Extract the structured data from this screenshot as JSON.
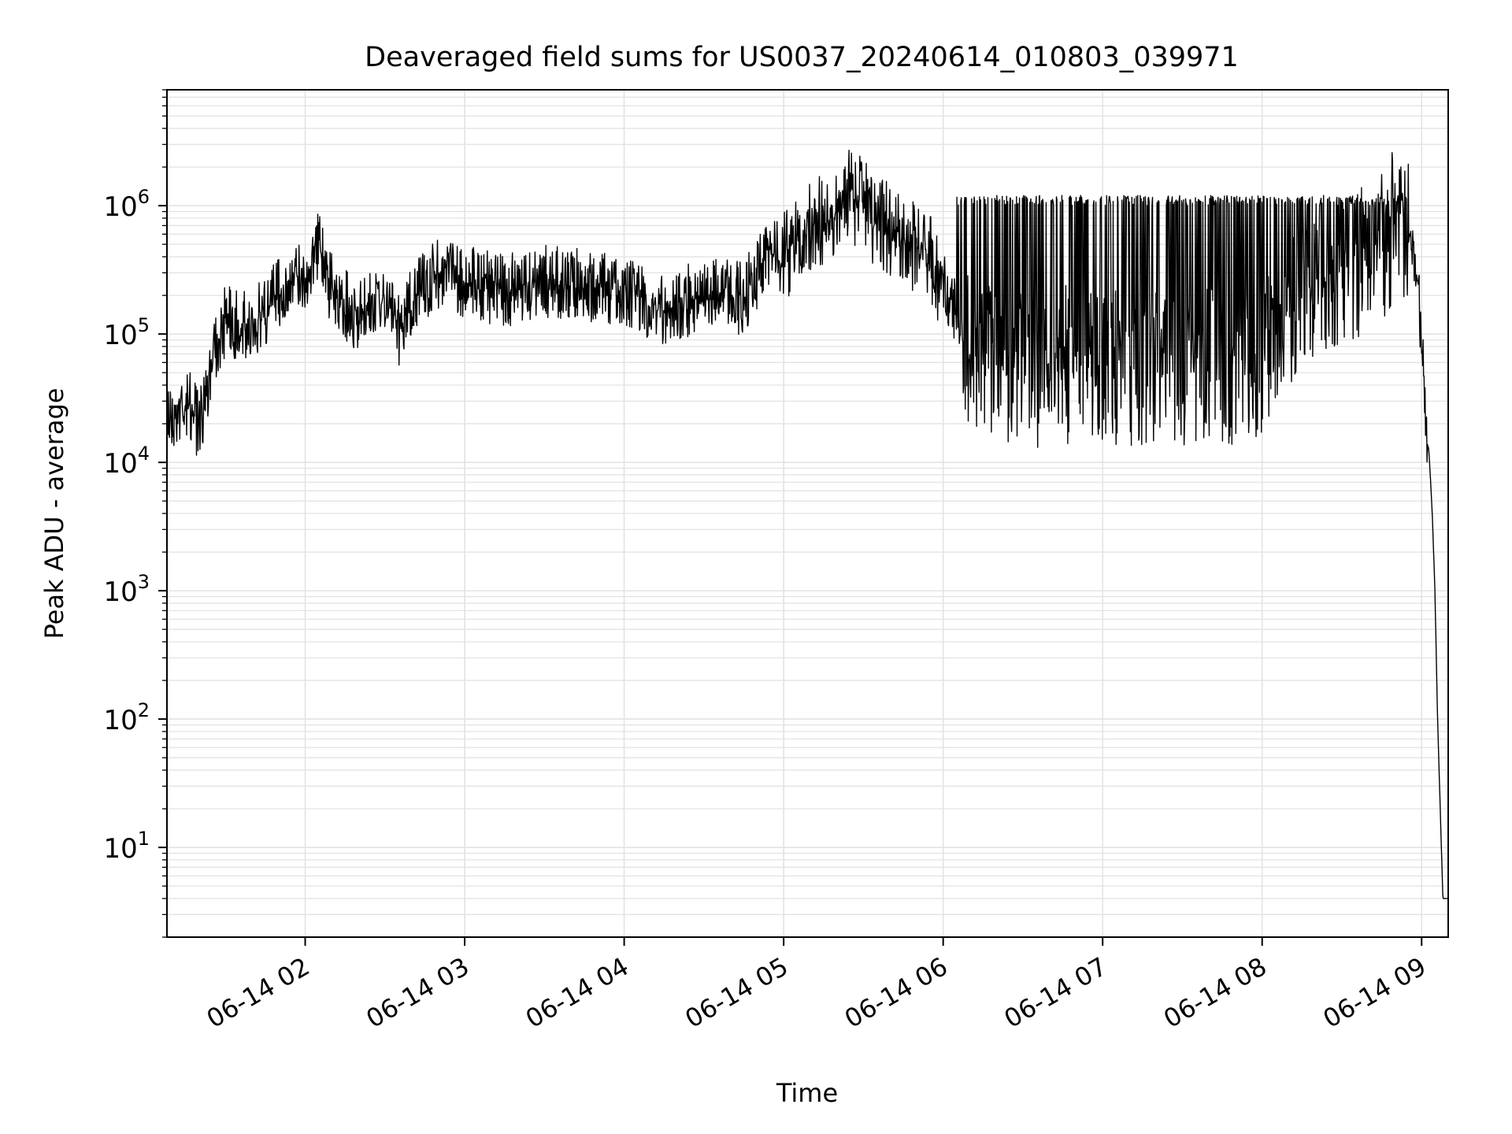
{
  "chart_data": {
    "type": "line",
    "title": "Deaveraged field sums for US0037_20240614_010803_039971",
    "xlabel": "Time",
    "ylabel": "Peak ADU - average",
    "yscale": "log",
    "ylim": [
      2,
      8000000
    ],
    "xlim": [
      "06-14 01:08",
      "06-14 09:10"
    ],
    "grid": true,
    "x_ticks": [
      "06-14 02",
      "06-14 03",
      "06-14 04",
      "06-14 05",
      "06-14 06",
      "06-14 07",
      "06-14 08",
      "06-14 09"
    ],
    "y_ticks": [
      {
        "value": 10,
        "base": "10",
        "exp": "1"
      },
      {
        "value": 100,
        "base": "10",
        "exp": "2"
      },
      {
        "value": 1000,
        "base": "10",
        "exp": "3"
      },
      {
        "value": 10000,
        "base": "10",
        "exp": "4"
      },
      {
        "value": 100000,
        "base": "10",
        "exp": "5"
      },
      {
        "value": 1000000,
        "base": "10",
        "exp": "6"
      }
    ],
    "series": [
      {
        "color": "#000000",
        "x": [
          "06-14 01:08",
          "06-14 01:12",
          "06-14 01:14",
          "06-14 01:18",
          "06-14 01:20",
          "06-14 01:25",
          "06-14 01:30",
          "06-14 01:40",
          "06-14 01:50",
          "06-14 02:00",
          "06-14 02:05",
          "06-14 02:10",
          "06-14 02:20",
          "06-14 02:30",
          "06-14 02:35",
          "06-14 02:40",
          "06-14 02:50",
          "06-14 03:00",
          "06-14 03:15",
          "06-14 03:30",
          "06-14 03:45",
          "06-14 04:00",
          "06-14 04:15",
          "06-14 04:30",
          "06-14 04:45",
          "06-14 04:55",
          "06-14 05:00",
          "06-14 05:10",
          "06-14 05:20",
          "06-14 05:25",
          "06-14 05:35",
          "06-14 05:45",
          "06-14 05:55",
          "06-14 06:05",
          "06-14 06:15",
          "06-14 06:30",
          "06-14 06:45",
          "06-14 07:00",
          "06-14 07:15",
          "06-14 07:30",
          "06-14 07:45",
          "06-14 08:00",
          "06-14 08:15",
          "06-14 08:30",
          "06-14 08:45",
          "06-14 08:50",
          "06-14 08:55",
          "06-14 08:58",
          "06-14 09:00",
          "06-14 09:02",
          "06-14 09:03",
          "06-14 09:04",
          "06-14 09:05",
          "06-14 09:06",
          "06-14 09:07",
          "06-14 09:08",
          "06-14 09:10"
        ],
        "y": [
          25000,
          30000,
          35000,
          30000,
          20000,
          80000,
          150000,
          130000,
          250000,
          350000,
          600000,
          250000,
          150000,
          250000,
          120000,
          200000,
          350000,
          300000,
          250000,
          300000,
          280000,
          250000,
          180000,
          230000,
          220000,
          500000,
          450000,
          800000,
          1200000,
          1500000,
          900000,
          700000,
          450000,
          150000,
          80000,
          70000,
          80000,
          70000,
          75000,
          70000,
          75000,
          80000,
          250000,
          350000,
          600000,
          1000000,
          700000,
          400000,
          100000,
          20000,
          10000,
          4000,
          1000,
          100,
          20,
          4,
          4
        ]
      }
    ]
  }
}
